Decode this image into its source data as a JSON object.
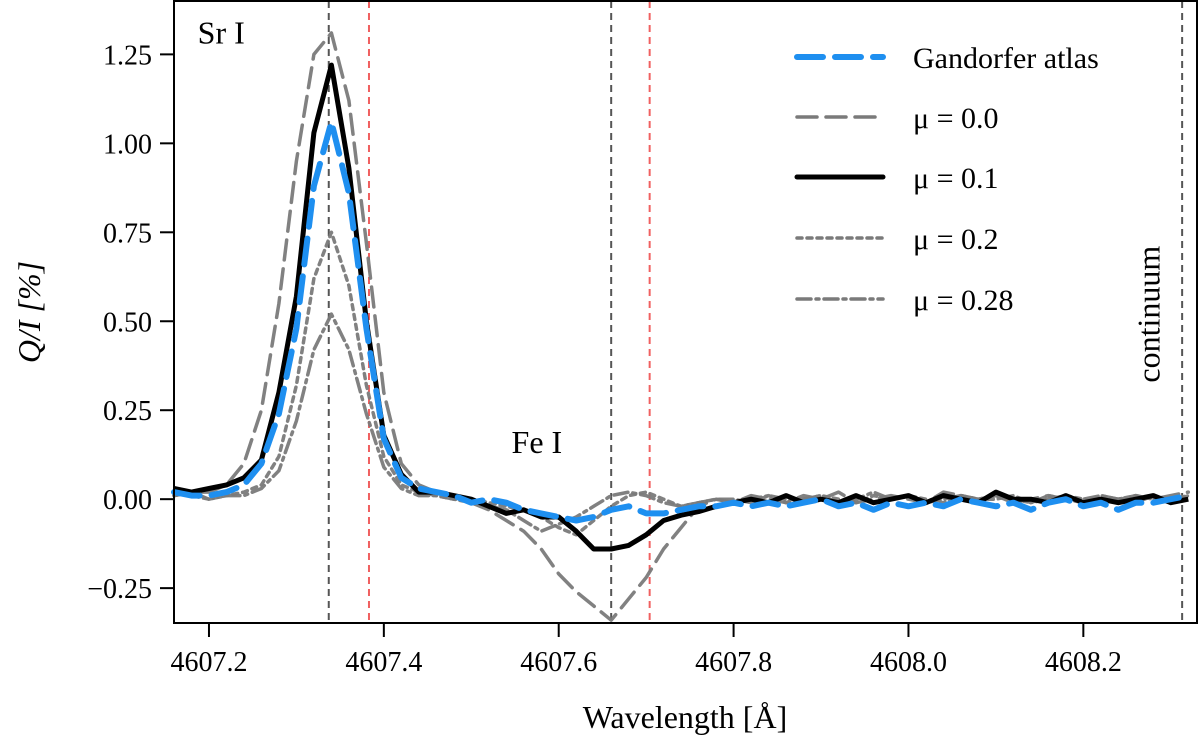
{
  "chart_data": {
    "type": "line",
    "title": "",
    "xlabel": "Wavelength [Å]",
    "ylabel": "Q/I [%]",
    "xlim": [
      4607.16,
      4608.33
    ],
    "ylim": [
      -0.348,
      1.4
    ],
    "xticks": [
      4607.2,
      4607.4,
      4607.6,
      4607.8,
      4608.0,
      4608.2
    ],
    "xtick_labels": [
      "4607.2",
      "4607.4",
      "4607.6",
      "4607.8",
      "4608.0",
      "4608.2"
    ],
    "yticks": [
      -0.25,
      0.0,
      0.25,
      0.5,
      0.75,
      1.0,
      1.25
    ],
    "ytick_labels": [
      "−0.25",
      "0.00",
      "0.25",
      "0.50",
      "0.75",
      "1.00",
      "1.25"
    ],
    "grid": false,
    "legend_position": "top-right",
    "x": [
      4607.16,
      4607.18,
      4607.2,
      4607.22,
      4607.24,
      4607.26,
      4607.28,
      4607.3,
      4607.32,
      4607.34,
      4607.36,
      4607.38,
      4607.4,
      4607.42,
      4607.44,
      4607.46,
      4607.48,
      4607.5,
      4607.52,
      4607.54,
      4607.56,
      4607.58,
      4607.6,
      4607.62,
      4607.64,
      4607.66,
      4607.68,
      4607.7,
      4607.72,
      4607.74,
      4607.76,
      4607.78,
      4607.8,
      4607.82,
      4607.84,
      4607.86,
      4607.88,
      4607.9,
      4607.92,
      4607.94,
      4607.96,
      4607.98,
      4608.0,
      4608.02,
      4608.04,
      4608.06,
      4608.08,
      4608.1,
      4608.12,
      4608.14,
      4608.16,
      4608.18,
      4608.2,
      4608.22,
      4608.24,
      4608.26,
      4608.28,
      4608.3,
      4608.32
    ],
    "series": [
      {
        "name": "Gandorfer atlas",
        "color": "#1e8ff0",
        "style": "dashed-long",
        "values": [
          0.02,
          0.01,
          0.01,
          0.02,
          0.04,
          0.1,
          0.24,
          0.48,
          0.88,
          1.06,
          0.86,
          0.48,
          0.17,
          0.06,
          0.03,
          0.02,
          0.01,
          -0.01,
          0.0,
          -0.01,
          -0.03,
          -0.04,
          -0.05,
          -0.06,
          -0.05,
          -0.03,
          -0.02,
          -0.04,
          -0.04,
          -0.03,
          -0.02,
          -0.02,
          -0.01,
          -0.02,
          -0.01,
          -0.02,
          -0.01,
          0.0,
          -0.02,
          -0.01,
          -0.03,
          -0.01,
          -0.02,
          -0.01,
          -0.02,
          0.0,
          -0.01,
          -0.02,
          -0.01,
          -0.03,
          -0.01,
          0.0,
          -0.02,
          -0.01,
          -0.03,
          -0.01,
          -0.01,
          0.0,
          0.01
        ]
      },
      {
        "name": "μ = 0.0",
        "color": "#7a7a7a",
        "style": "dashed",
        "values": [
          0.01,
          0.02,
          0.02,
          0.04,
          0.1,
          0.25,
          0.55,
          0.95,
          1.25,
          1.31,
          1.12,
          0.72,
          0.3,
          0.1,
          0.04,
          0.02,
          0.01,
          -0.01,
          -0.03,
          -0.06,
          -0.09,
          -0.14,
          -0.21,
          -0.26,
          -0.3,
          -0.34,
          -0.28,
          -0.22,
          -0.14,
          -0.08,
          -0.02,
          0.0,
          -0.01,
          0.01,
          0.0,
          -0.01,
          0.01,
          0.0,
          0.02,
          -0.01,
          0.0,
          0.01,
          0.0,
          -0.01,
          0.02,
          0.01,
          0.0,
          0.01,
          -0.01,
          0.0,
          0.01,
          0.0,
          -0.01,
          0.01,
          0.0,
          0.01,
          0.0,
          0.01,
          0.02
        ]
      },
      {
        "name": "μ = 0.1",
        "color": "#000000",
        "style": "solid",
        "values": [
          0.03,
          0.02,
          0.03,
          0.04,
          0.06,
          0.11,
          0.3,
          0.57,
          1.03,
          1.22,
          0.93,
          0.5,
          0.18,
          0.07,
          0.02,
          0.02,
          0.01,
          0.0,
          -0.02,
          -0.04,
          -0.03,
          -0.05,
          -0.05,
          -0.09,
          -0.14,
          -0.14,
          -0.13,
          -0.1,
          -0.06,
          -0.045,
          -0.035,
          -0.02,
          -0.01,
          0.0,
          -0.01,
          0.01,
          -0.01,
          0.0,
          -0.01,
          0.01,
          -0.01,
          0.0,
          0.01,
          -0.01,
          0.01,
          0.0,
          -0.01,
          0.02,
          0.0,
          0.0,
          -0.01,
          0.01,
          -0.01,
          0.0,
          -0.01,
          0.0,
          0.01,
          -0.01,
          0.0
        ]
      },
      {
        "name": "μ = 0.2",
        "color": "#7a7a7a",
        "style": "dotted",
        "values": [
          0.02,
          0.01,
          0.0,
          0.01,
          0.02,
          0.04,
          0.12,
          0.32,
          0.62,
          0.75,
          0.6,
          0.32,
          0.12,
          0.04,
          0.02,
          0.01,
          0.0,
          0.0,
          -0.01,
          -0.02,
          -0.03,
          -0.05,
          -0.08,
          -0.1,
          -0.06,
          -0.02,
          0.01,
          0.02,
          0.0,
          -0.02,
          -0.01,
          0.0,
          -0.01,
          0.0,
          0.01,
          -0.01,
          0.0,
          0.01,
          0.0,
          -0.01,
          0.01,
          0.0,
          0.01,
          0.0,
          -0.01,
          0.01,
          0.0,
          0.0,
          0.01,
          -0.01,
          0.0,
          0.01,
          0.0,
          -0.01,
          0.0,
          0.01,
          0.0,
          -0.01,
          0.01
        ]
      },
      {
        "name": "μ = 0.28",
        "color": "#7a7a7a",
        "style": "dashdot",
        "values": [
          0.01,
          0.02,
          0.0,
          0.01,
          0.01,
          0.03,
          0.08,
          0.22,
          0.42,
          0.52,
          0.42,
          0.24,
          0.09,
          0.03,
          0.01,
          0.01,
          0.0,
          -0.01,
          -0.02,
          -0.03,
          -0.06,
          -0.09,
          -0.07,
          -0.05,
          -0.02,
          0.01,
          0.02,
          0.01,
          -0.01,
          -0.02,
          -0.01,
          0.0,
          0.0,
          -0.01,
          0.01,
          0.0,
          0.0,
          0.01,
          -0.01,
          0.0,
          0.02,
          0.0,
          0.01,
          -0.01,
          0.0,
          0.01,
          0.0,
          0.01,
          0.0,
          -0.01,
          0.01,
          0.0,
          0.0,
          0.01,
          0.0,
          -0.01,
          0.01,
          0.0,
          0.01
        ]
      }
    ],
    "vertical_lines": [
      {
        "x": 4607.337,
        "color": "#555555"
      },
      {
        "x": 4607.383,
        "color": "#f06060"
      },
      {
        "x": 4607.66,
        "color": "#555555"
      },
      {
        "x": 4607.704,
        "color": "#f06060"
      },
      {
        "x": 4608.313,
        "color": "#555555"
      }
    ],
    "annotations": [
      {
        "text": "Sr I",
        "x": 4607.214,
        "y": 1.28,
        "rotation": 0
      },
      {
        "text": "Fe I",
        "x": 4607.575,
        "y": 0.13,
        "rotation": 0
      },
      {
        "text": "continuum",
        "x": 4608.287,
        "y": 0.52,
        "rotation": -90
      }
    ]
  }
}
